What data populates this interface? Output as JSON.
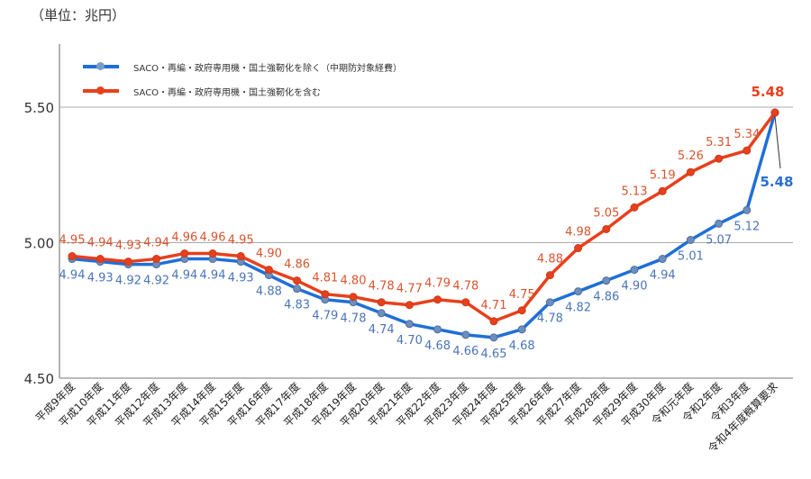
{
  "unit_label": "（単位：兆円）",
  "chart_data": {
    "type": "line",
    "title": "",
    "xlabel": "",
    "ylabel": "",
    "ylim": [
      4.5,
      5.5
    ],
    "yticks": [
      "4.50",
      "5.00",
      "5.50"
    ],
    "grid": "horizontal",
    "legend_position": "top-left",
    "categories": [
      "平成9年度",
      "平成10年度",
      "平成11年度",
      "平成12年度",
      "平成13年度",
      "平成14年度",
      "平成15年度",
      "平成16年度",
      "平成17年度",
      "平成18年度",
      "平成19年度",
      "平成20年度",
      "平成21年度",
      "平成22年度",
      "平成23年度",
      "平成24年度",
      "平成25年度",
      "平成26年度",
      "平成27年度",
      "平成28年度",
      "平成29年度",
      "平成30年度",
      "令和元年度",
      "令和2年度",
      "令和3年度",
      "令和4年度概算要求"
    ],
    "series": [
      {
        "name": "SACO・再編・政府専用機・国土強靭化を除く（中期防対象経費）",
        "color": "#1f6fd8",
        "label_color": "#4a74b8",
        "values": [
          4.94,
          4.93,
          4.92,
          4.92,
          4.94,
          4.94,
          4.93,
          4.88,
          4.83,
          4.79,
          4.78,
          4.74,
          4.7,
          4.68,
          4.66,
          4.65,
          4.68,
          4.78,
          4.82,
          4.86,
          4.9,
          4.94,
          5.01,
          5.07,
          5.12,
          5.48
        ]
      },
      {
        "name": "SACO・再編・政府専用機・国土強靭化を含む",
        "color": "#e8401c",
        "label_color": "#d9542e",
        "values": [
          4.95,
          4.94,
          4.93,
          4.94,
          4.96,
          4.96,
          4.95,
          4.9,
          4.86,
          4.81,
          4.8,
          4.78,
          4.77,
          4.79,
          4.78,
          4.71,
          4.75,
          4.88,
          4.98,
          5.05,
          5.13,
          5.19,
          5.26,
          5.31,
          5.34,
          5.48
        ]
      }
    ]
  }
}
